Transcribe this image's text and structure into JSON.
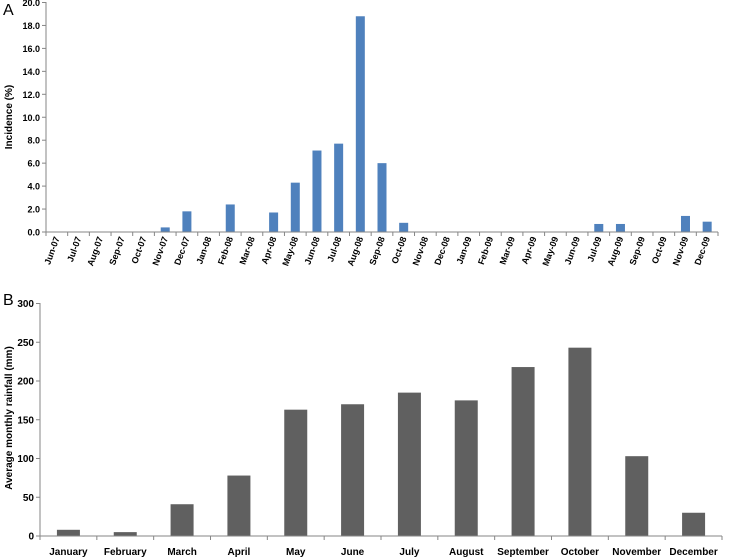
{
  "chart_data": [
    {
      "panel": "A",
      "type": "bar",
      "ylabel": "Incidence (%)",
      "ylim": [
        0,
        20
      ],
      "yticks": [
        "0.0",
        "2.0",
        "4.0",
        "6.0",
        "8.0",
        "10.0",
        "12.0",
        "14.0",
        "16.0",
        "18.0",
        "20.0"
      ],
      "grid": false,
      "bar_color": "#4f81bd",
      "categories": [
        "Jun-07",
        "Jul-07",
        "Aug-07",
        "Sep-07",
        "Oct-07",
        "Nov-07",
        "Dec-07",
        "Jan-08",
        "Feb-08",
        "Mar-08",
        "Apr-08",
        "May-08",
        "Jun-08",
        "Jul-08",
        "Aug-08",
        "Sep-08",
        "Oct-08",
        "Nov-08",
        "Dec-08",
        "Jan-09",
        "Feb-09",
        "Mar-09",
        "Apr-09",
        "May-09",
        "Jun-09",
        "Jul-09",
        "Aug-09",
        "Sep-09",
        "Oct-09",
        "Nov-09",
        "Dec-09"
      ],
      "values": [
        0,
        0,
        0,
        0,
        0,
        0.4,
        1.8,
        0,
        2.4,
        0,
        1.7,
        4.3,
        7.1,
        7.7,
        18.8,
        6.0,
        0.8,
        0,
        0,
        0,
        0,
        0,
        0,
        0,
        0,
        0.7,
        0.7,
        0,
        0,
        1.4,
        0.9
      ]
    },
    {
      "panel": "B",
      "type": "bar",
      "ylabel": "Average monthly rainfall (mm)",
      "ylim": [
        0,
        300
      ],
      "yticks": [
        "0",
        "50",
        "100",
        "150",
        "200",
        "250",
        "300"
      ],
      "grid": false,
      "bar_color": "#606060",
      "categories": [
        "January",
        "February",
        "March",
        "April",
        "May",
        "June",
        "July",
        "August",
        "September",
        "October",
        "November",
        "December"
      ],
      "values": [
        8,
        5,
        41,
        78,
        163,
        170,
        185,
        175,
        218,
        243,
        103,
        30
      ]
    }
  ]
}
